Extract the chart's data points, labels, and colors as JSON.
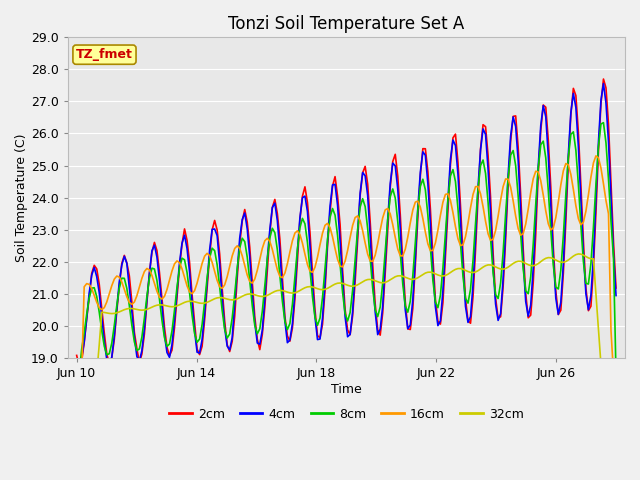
{
  "title": "Tonzi Soil Temperature Set A",
  "xlabel": "Time",
  "ylabel": "Soil Temperature (C)",
  "ylim": [
    19.0,
    29.0
  ],
  "yticks": [
    19.0,
    20.0,
    21.0,
    22.0,
    23.0,
    24.0,
    25.0,
    26.0,
    27.0,
    28.0,
    29.0
  ],
  "xtick_labels": [
    "Jun 10",
    "Jun 14",
    "Jun 18",
    "Jun 22",
    "Jun 26"
  ],
  "xtick_positions": [
    0,
    4,
    8,
    12,
    16
  ],
  "legend_labels": [
    "2cm",
    "4cm",
    "8cm",
    "16cm",
    "32cm"
  ],
  "line_colors": [
    "#ff0000",
    "#0000ff",
    "#00cc00",
    "#ff9900",
    "#cccc00"
  ],
  "line_widths": [
    1.2,
    1.2,
    1.2,
    1.2,
    1.2
  ],
  "annotation_text": "TZ_fmet",
  "annotation_color": "#cc0000",
  "annotation_bg": "#ffff99",
  "annotation_border": "#aa8800",
  "plot_bg_color": "#e8e8e8",
  "fig_bg_color": "#f0f0f0",
  "grid_color": "#ffffff",
  "title_fontsize": 12,
  "axis_fontsize": 9,
  "tick_fontsize": 9
}
